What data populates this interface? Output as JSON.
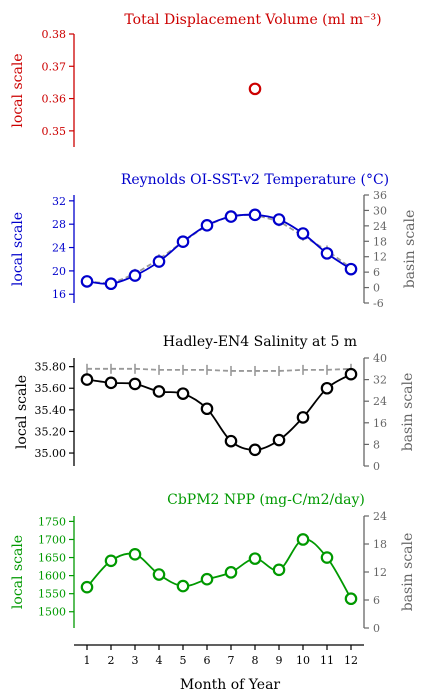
{
  "xaxis": {
    "label": "Month of Year",
    "ticks": [
      "1",
      "2",
      "3",
      "4",
      "5",
      "6",
      "7",
      "8",
      "9",
      "10",
      "11",
      "12"
    ]
  },
  "chart_data": [
    {
      "type": "scatter",
      "title": "Total Displacement Volume (ml m⁻³)",
      "color": "#cc0000",
      "ylabel": "local scale",
      "ylim": [
        0.345,
        0.38
      ],
      "yticks": [
        "0.35",
        "0.36",
        "0.37",
        "0.38"
      ],
      "ytick_values": [
        0.35,
        0.36,
        0.37,
        0.38
      ],
      "x": [
        8
      ],
      "values": [
        0.363
      ]
    },
    {
      "type": "line",
      "title": "Reynolds OI-SST-v2 Temperature (°C)",
      "color": "#0000cc",
      "ylabel": "local scale",
      "y2label": "basin scale",
      "ylim": [
        14.5,
        33.0
      ],
      "yticks": [
        "16",
        "20",
        "24",
        "28",
        "32"
      ],
      "ytick_values": [
        16,
        20,
        24,
        28,
        32
      ],
      "y2lim": [
        -6,
        36
      ],
      "y2ticks": [
        "-6",
        "0",
        "6",
        "12",
        "18",
        "24",
        "30",
        "36"
      ],
      "y2tick_values": [
        -6,
        0,
        6,
        12,
        18,
        24,
        30,
        36
      ],
      "x": [
        1,
        2,
        3,
        4,
        5,
        6,
        7,
        8,
        9,
        10,
        11,
        12
      ],
      "values": [
        18.2,
        17.8,
        19.2,
        21.6,
        25.0,
        27.8,
        29.3,
        29.6,
        28.8,
        26.4,
        23.0,
        20.3
      ],
      "basin": [
        18.2,
        17.8,
        19.5,
        22.0,
        25.0,
        27.8,
        29.5,
        29.6,
        28.5,
        26.0,
        23.5,
        20.5
      ]
    },
    {
      "type": "line",
      "title": "Hadley-EN4 Salinity at 5 m",
      "color": "#000000",
      "ylabel": "local scale",
      "y2label": "basin scale",
      "ylim": [
        34.88,
        35.88
      ],
      "yticks": [
        "35.00",
        "35.20",
        "35.40",
        "35.60",
        "35.80"
      ],
      "ytick_values": [
        35.0,
        35.2,
        35.4,
        35.6,
        35.8
      ],
      "y2lim": [
        0,
        40
      ],
      "y2ticks": [
        "0",
        "8",
        "16",
        "24",
        "32",
        "40"
      ],
      "y2tick_values": [
        0,
        8,
        16,
        24,
        32,
        40
      ],
      "x": [
        1,
        2,
        3,
        4,
        5,
        6,
        7,
        8,
        9,
        10,
        11,
        12
      ],
      "values": [
        35.68,
        35.65,
        35.64,
        35.57,
        35.55,
        35.41,
        35.11,
        35.03,
        35.12,
        35.33,
        35.6,
        35.73
      ],
      "basin": [
        35.78,
        35.78,
        35.78,
        35.77,
        35.77,
        35.77,
        35.76,
        35.76,
        35.76,
        35.77,
        35.77,
        35.78
      ]
    },
    {
      "type": "line",
      "title": "CbPM2 NPP (mg-C/m2/day)",
      "color": "#009900",
      "ylabel": "local scale",
      "y2label": "basin scale",
      "ylim": [
        1455,
        1765
      ],
      "yticks": [
        "1500",
        "1550",
        "1600",
        "1650",
        "1700",
        "1750"
      ],
      "ytick_values": [
        1500,
        1550,
        1600,
        1650,
        1700,
        1750
      ],
      "y2lim": [
        0,
        24
      ],
      "y2ticks": [
        "0",
        "6",
        "12",
        "18",
        "24"
      ],
      "y2tick_values": [
        0,
        6,
        12,
        18,
        24
      ],
      "x": [
        1,
        2,
        3,
        4,
        5,
        6,
        7,
        8,
        9,
        10,
        11,
        12
      ],
      "values": [
        1568,
        1641,
        1659,
        1603,
        1571,
        1590,
        1609,
        1647,
        1616,
        1700,
        1650,
        1536
      ]
    }
  ]
}
